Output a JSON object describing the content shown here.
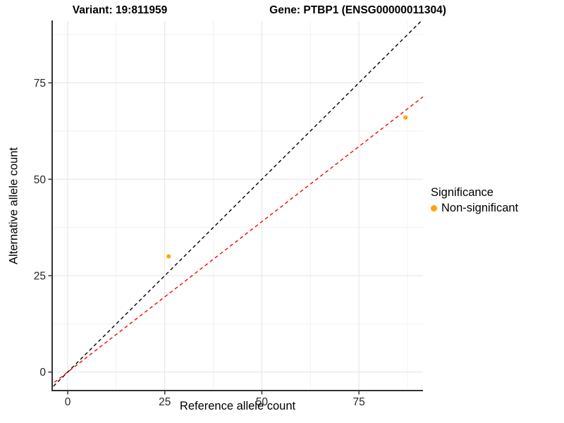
{
  "header": {
    "variant_title": "Variant: 19:811959",
    "gene_title": "Gene: PTBP1 (ENSG00000011304)"
  },
  "axes": {
    "x_label": "Reference allele count",
    "y_label": "Alternative allele count"
  },
  "legend": {
    "title": "Significance",
    "items": [
      {
        "label": "Non-significant",
        "color": "#FFA500",
        "marker": "circle"
      }
    ]
  },
  "chart_data": {
    "type": "scatter",
    "title": "",
    "xlabel": "Reference allele count",
    "ylabel": "Alternative allele count",
    "series": [
      {
        "name": "Non-significant",
        "color": "#FFA500",
        "point_radius": 3,
        "points": [
          {
            "x": 26,
            "y": 30
          },
          {
            "x": 87,
            "y": 66
          }
        ]
      }
    ],
    "reference_lines": [
      {
        "name": "identity-line",
        "slope": 1,
        "intercept": 0,
        "color": "#000000",
        "style": "dashed"
      },
      {
        "name": "fit-line",
        "slope": 0.78,
        "intercept": 0,
        "color": "#FF0000",
        "style": "dashed"
      }
    ],
    "xlim": [
      -4,
      91.5
    ],
    "ylim": [
      -4.8,
      91
    ],
    "x_ticks": [
      0,
      25,
      50,
      75
    ],
    "y_ticks": [
      0,
      25,
      50,
      75
    ],
    "x_minor_ticks": [
      12.5,
      37.5,
      62.5,
      87.5
    ],
    "y_minor_ticks": [
      12.5,
      37.5,
      62.5,
      87.5
    ],
    "grid": true,
    "legend_position": "right",
    "colors": {
      "major_grid": "#E4E4E4",
      "minor_grid": "#F1F1F1",
      "axis_line": "#333333",
      "tick_text": "#262626"
    }
  }
}
